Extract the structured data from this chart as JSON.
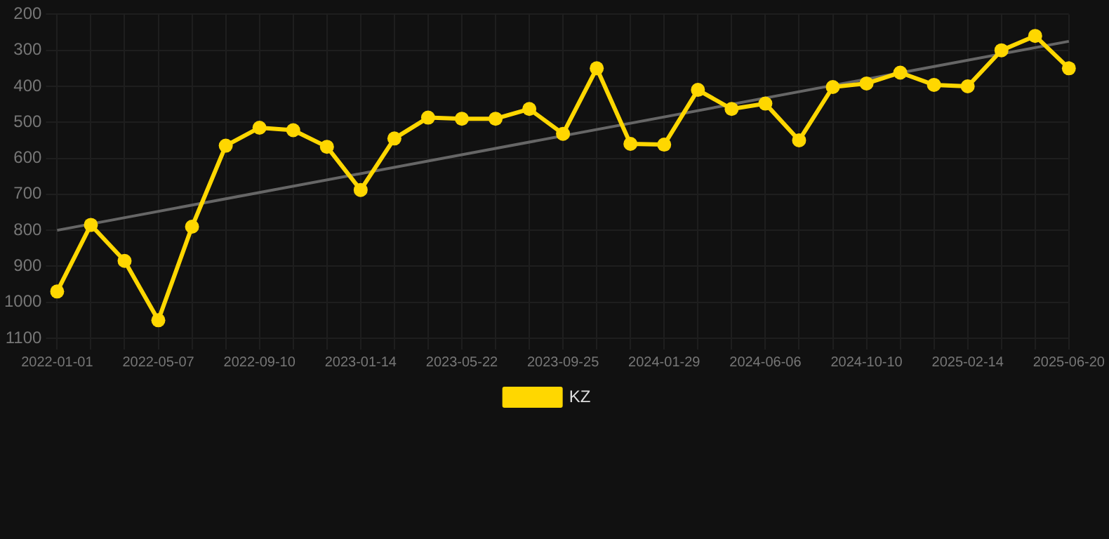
{
  "chart_data": {
    "type": "line",
    "categories": [
      "2022-01-01",
      null,
      null,
      "2022-05-07",
      null,
      null,
      "2022-09-10",
      null,
      null,
      "2023-01-14",
      null,
      null,
      "2023-05-22",
      null,
      null,
      "2023-09-25",
      null,
      null,
      "2024-01-29",
      null,
      null,
      "2024-06-06",
      null,
      null,
      "2024-10-10",
      null,
      null,
      "2025-02-14",
      null,
      null,
      "2025-06-20"
    ],
    "series": [
      {
        "name": "KZ",
        "color": "#ffd700",
        "marker": "circle",
        "values": [
          970,
          785,
          885,
          1050,
          790,
          565,
          515,
          522,
          568,
          688,
          545,
          487,
          490,
          490,
          463,
          532,
          350,
          560,
          562,
          410,
          463,
          448,
          550,
          402,
          392,
          362,
          396,
          400,
          300,
          260,
          350
        ]
      },
      {
        "type": "line",
        "color": "#666666",
        "marker": "none",
        "values": [
          800,
          null,
          null,
          null,
          null,
          null,
          null,
          null,
          null,
          null,
          null,
          null,
          null,
          null,
          null,
          null,
          null,
          null,
          null,
          null,
          null,
          null,
          null,
          null,
          null,
          null,
          null,
          null,
          null,
          null,
          275
        ]
      }
    ],
    "ylim": [
      1100,
      200
    ],
    "yticks": [
      200,
      300,
      400,
      500,
      600,
      700,
      800,
      900,
      1000,
      1100
    ],
    "grid": true,
    "legend": "bottom"
  }
}
